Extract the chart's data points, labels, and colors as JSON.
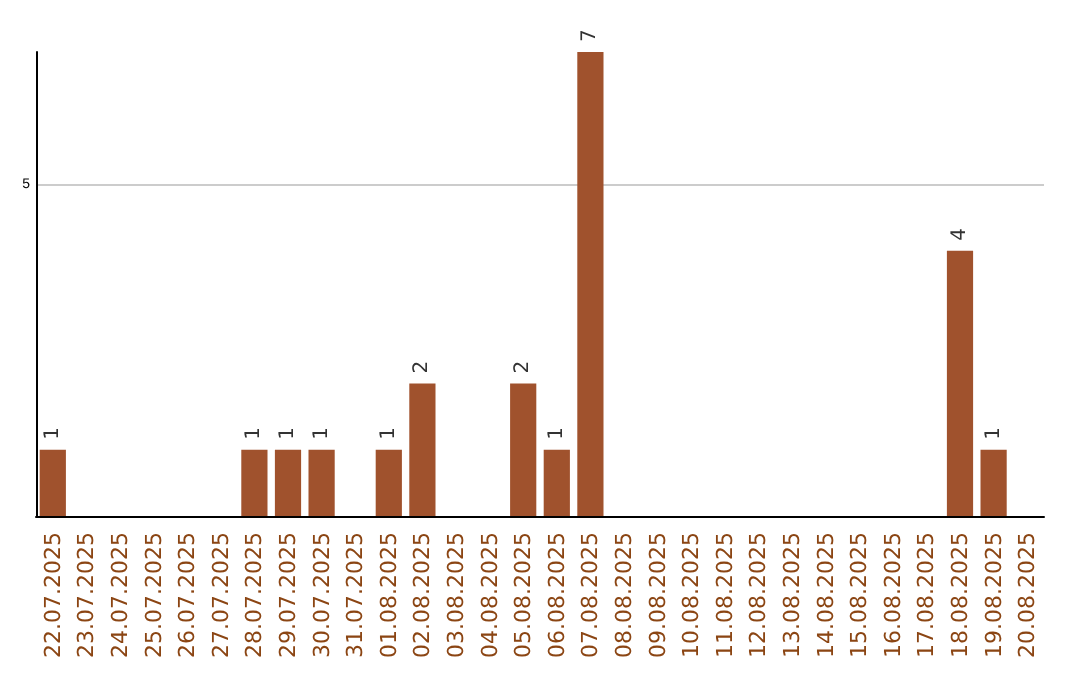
{
  "chart_data": {
    "type": "bar",
    "categories": [
      "22.07.2025",
      "23.07.2025",
      "24.07.2025",
      "25.07.2025",
      "26.07.2025",
      "27.07.2025",
      "28.07.2025",
      "29.07.2025",
      "30.07.2025",
      "31.07.2025",
      "01.08.2025",
      "02.08.2025",
      "03.08.2025",
      "04.08.2025",
      "05.08.2025",
      "06.08.2025",
      "07.08.2025",
      "08.08.2025",
      "09.08.2025",
      "10.08.2025",
      "11.08.2025",
      "12.08.2025",
      "13.08.2025",
      "14.08.2025",
      "15.08.2025",
      "16.08.2025",
      "17.08.2025",
      "18.08.2025",
      "19.08.2025",
      "20.08.2025"
    ],
    "values": [
      1,
      0,
      0,
      0,
      0,
      0,
      1,
      1,
      1,
      0,
      1,
      2,
      0,
      0,
      2,
      1,
      7,
      0,
      0,
      0,
      0,
      0,
      0,
      0,
      0,
      0,
      0,
      4,
      1,
      0
    ],
    "value_labels": [
      "1",
      null,
      null,
      null,
      null,
      null,
      "1",
      "1",
      "1",
      null,
      "1",
      "2",
      null,
      null,
      "2",
      "1",
      "7",
      null,
      null,
      null,
      null,
      null,
      null,
      null,
      null,
      null,
      null,
      "4",
      "1",
      null
    ],
    "color": "#a0522d",
    "ylim": [
      0,
      7
    ],
    "yticks": [
      5
    ],
    "grid": "y"
  }
}
